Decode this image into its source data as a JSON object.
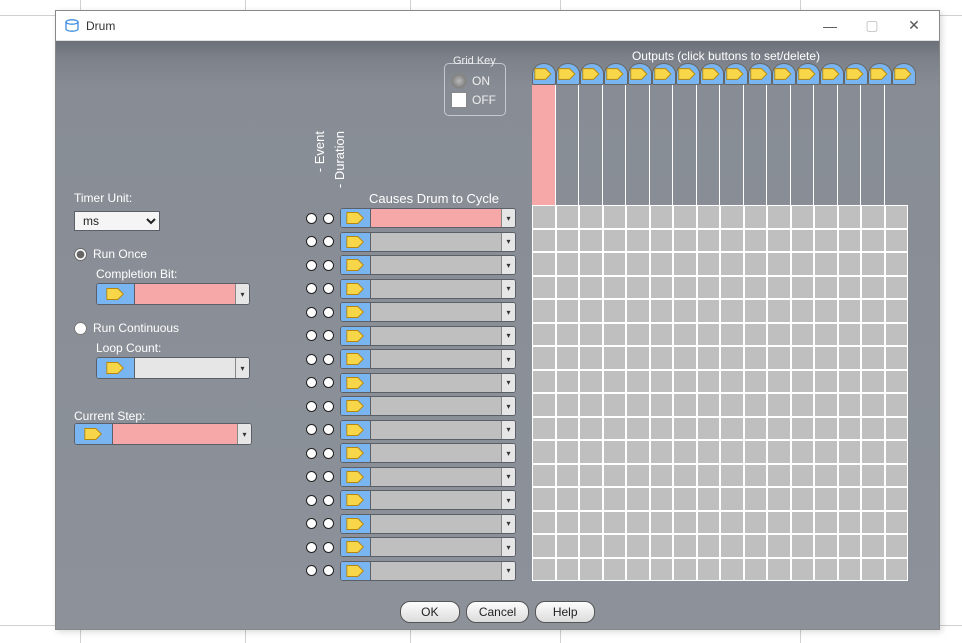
{
  "window": {
    "title": "Drum",
    "icon_color": "#3a8dde"
  },
  "colors": {
    "body_grad_top": "#6a6f78",
    "pink": "#f6a7a7",
    "blue": "#79b5f0",
    "grid_cell": "#bfbfbf"
  },
  "grid_key": {
    "legend": "Grid Key",
    "on": "ON",
    "off": "OFF"
  },
  "rot_labels": {
    "event": "- Event",
    "duration": "- Duration"
  },
  "causes_label": "Causes Drum to Cycle",
  "outputs_label": "Outputs (click buttons to set/delete)",
  "timer_unit": {
    "label": "Timer Unit:",
    "value": "ms"
  },
  "run_once": {
    "label": "Run Once",
    "completion_label": "Completion Bit:",
    "checked": true
  },
  "run_cont": {
    "label": "Run Continuous",
    "loop_label": "Loop Count:",
    "checked": false
  },
  "current_step": {
    "label": "Current Step:"
  },
  "buttons": {
    "ok": "OK",
    "cancel": "Cancel",
    "help": "Help"
  },
  "steps": 16,
  "output_cols": 16,
  "extra_pink_cols": 1
}
